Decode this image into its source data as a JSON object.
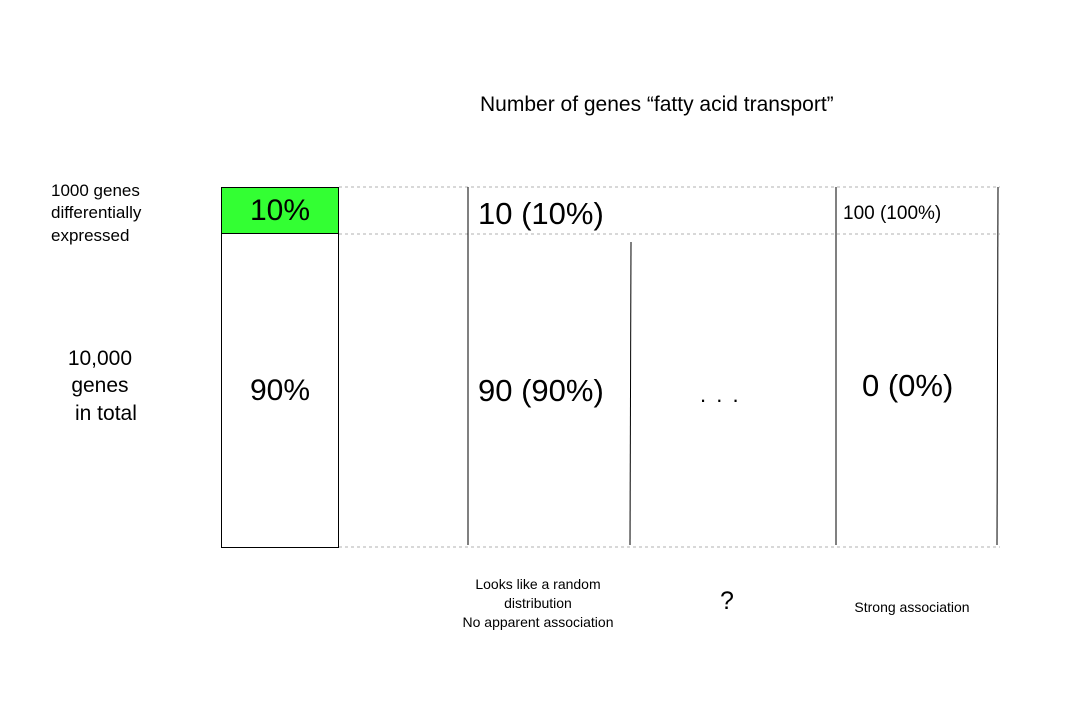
{
  "title": "Number of genes “fatty acid transport”",
  "left_labels": {
    "de": [
      "1000 genes",
      "differentially",
      "expressed"
    ],
    "total": [
      "10,000",
      "genes",
      "in total"
    ]
  },
  "box": {
    "top": "10%",
    "bottom": "90%",
    "top_color": "#33ff33"
  },
  "col_random": {
    "top": "10 (10%)",
    "bottom": "90 (90%)",
    "caption": [
      "Looks like a random",
      "distribution",
      "No apparent association"
    ]
  },
  "col_middle": {
    "dots": ". . .",
    "question": "?"
  },
  "col_strong": {
    "top": "100 (100%)",
    "bottom": "0 (0%)",
    "caption": "Strong association"
  }
}
